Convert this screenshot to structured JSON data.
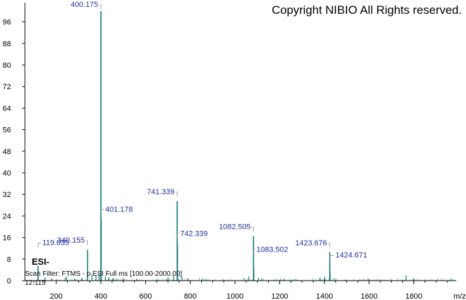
{
  "header": {
    "copyright": "Copyright NIBIO All Rights reserved."
  },
  "meta": {
    "ion_mode": "ESI-",
    "scan_filter": "Scan Filter: FTMS - p ESI Full ms [100.00-2000.00]",
    "retention_time": "12.115"
  },
  "colors": {
    "spectrum": "#0a7a72",
    "labels": "#1f2fa0",
    "axis": "#000000"
  },
  "chart_data": {
    "type": "bar",
    "title": "",
    "xlabel": "m/z",
    "ylabel": "",
    "xlim": [
      60,
      1990
    ],
    "ylim": [
      0,
      104
    ],
    "x_ticks": [
      200,
      400,
      600,
      800,
      1000,
      1200,
      1400,
      1600,
      1800
    ],
    "y_ticks": [
      0,
      8,
      16,
      24,
      32,
      40,
      48,
      56,
      64,
      72,
      80,
      88,
      96
    ],
    "grid": false,
    "peaks": [
      {
        "mz": 119.035,
        "intensity": 5.5,
        "label": "119.035"
      },
      {
        "mz": 340.155,
        "intensity": 11.5,
        "label": "340.155"
      },
      {
        "mz": 400.175,
        "intensity": 100,
        "label": "400.175"
      },
      {
        "mz": 401.178,
        "intensity": 22.5,
        "label": "401.178"
      },
      {
        "mz": 741.339,
        "intensity": 29.5,
        "label": "741.339"
      },
      {
        "mz": 742.339,
        "intensity": 13.5,
        "label": "742.339"
      },
      {
        "mz": 1082.505,
        "intensity": 16.5,
        "label": "1082.505"
      },
      {
        "mz": 1083.502,
        "intensity": 4.5,
        "label": "1083.502"
      },
      {
        "mz": 1423.676,
        "intensity": 10.5,
        "label": "1423.676"
      },
      {
        "mz": 1424.671,
        "intensity": 3.5,
        "label": "1424.671"
      }
    ],
    "minor_peaks": [
      {
        "mz": 150,
        "intensity": 1.2
      },
      {
        "mz": 180,
        "intensity": 0.8
      },
      {
        "mz": 245,
        "intensity": 1.5
      },
      {
        "mz": 283,
        "intensity": 0.9
      },
      {
        "mz": 315,
        "intensity": 1.1
      },
      {
        "mz": 360,
        "intensity": 2.2
      },
      {
        "mz": 378,
        "intensity": 1.8
      },
      {
        "mz": 392,
        "intensity": 2.6
      },
      {
        "mz": 420,
        "intensity": 1.6
      },
      {
        "mz": 436,
        "intensity": 1.3
      },
      {
        "mz": 455,
        "intensity": 1.0
      },
      {
        "mz": 500,
        "intensity": 0.8
      },
      {
        "mz": 560,
        "intensity": 0.7
      },
      {
        "mz": 700,
        "intensity": 1.2
      },
      {
        "mz": 725,
        "intensity": 1.8
      },
      {
        "mz": 763,
        "intensity": 1.4
      },
      {
        "mz": 790,
        "intensity": 0.9
      },
      {
        "mz": 870,
        "intensity": 0.6
      },
      {
        "mz": 1040,
        "intensity": 0.9
      },
      {
        "mz": 1062,
        "intensity": 1.6
      },
      {
        "mz": 1105,
        "intensity": 1.0
      },
      {
        "mz": 1120,
        "intensity": 0.8
      },
      {
        "mz": 1220,
        "intensity": 0.7
      },
      {
        "mz": 1380,
        "intensity": 1.1
      },
      {
        "mz": 1401,
        "intensity": 1.5
      },
      {
        "mz": 1445,
        "intensity": 0.9
      },
      {
        "mz": 1600,
        "intensity": 0.6
      },
      {
        "mz": 1765,
        "intensity": 2.0
      },
      {
        "mz": 1800,
        "intensity": 0.9
      }
    ]
  }
}
